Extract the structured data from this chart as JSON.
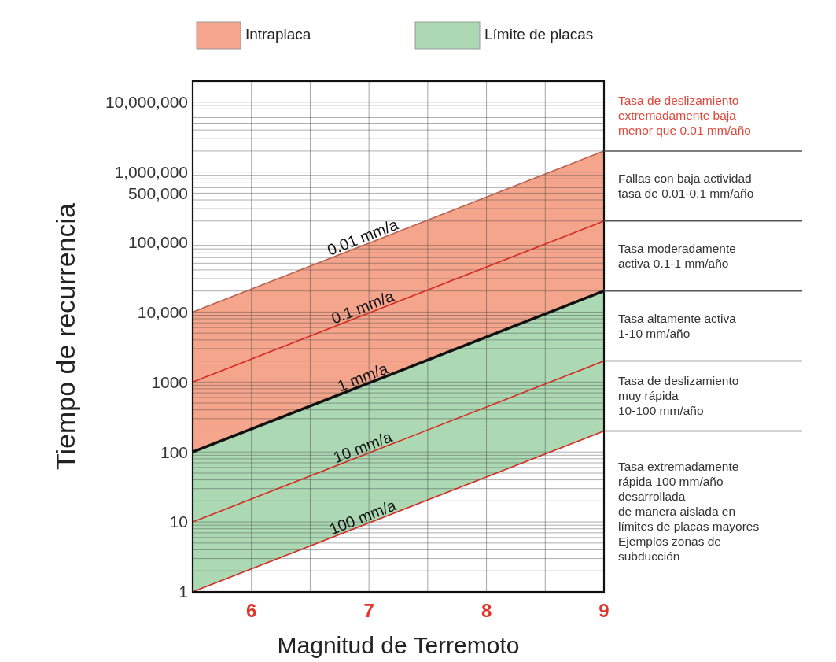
{
  "chart_data": {
    "type": "line",
    "xlabel": "Magnitud de Terremoto",
    "ylabel": "Tiempo de recurrencia",
    "log": true,
    "grid": true,
    "legend": "top",
    "x": [
      5.5,
      9
    ],
    "xlim": [
      5.5,
      9
    ],
    "xticks": [
      6,
      {
        "value": 6.5,
        "label": null
      },
      7,
      {
        "value": 7.5,
        "label": null
      },
      8,
      {
        "value": 8.5,
        "label": null
      },
      9
    ],
    "ylim": [
      1,
      20000000
    ],
    "yticks": [
      1,
      {
        "value": 2,
        "label": null
      },
      {
        "value": 3,
        "label": null
      },
      {
        "value": 4,
        "label": null
      },
      {
        "value": 5,
        "label": null
      },
      {
        "value": 6,
        "label": null
      },
      {
        "value": 7,
        "label": null
      },
      {
        "value": 8,
        "label": null
      },
      {
        "value": 9,
        "label": null
      },
      10,
      {
        "value": 20,
        "label": null
      },
      {
        "value": 30,
        "label": null
      },
      {
        "value": 40,
        "label": null
      },
      {
        "value": 50,
        "label": null
      },
      {
        "value": 60,
        "label": null
      },
      {
        "value": 70,
        "label": null
      },
      {
        "value": 80,
        "label": null
      },
      {
        "value": 90,
        "label": null
      },
      100,
      {
        "value": 200,
        "label": null
      },
      {
        "value": 300,
        "label": null
      },
      {
        "value": 400,
        "label": null
      },
      {
        "value": 500,
        "label": null
      },
      {
        "value": 600,
        "label": null
      },
      {
        "value": 700,
        "label": null
      },
      {
        "value": 800,
        "label": null
      },
      {
        "value": 900,
        "label": null
      },
      1000,
      {
        "value": 2000,
        "label": null
      },
      {
        "value": 3000,
        "label": null
      },
      {
        "value": 4000,
        "label": null
      },
      {
        "value": 5000,
        "label": null
      },
      {
        "value": 6000,
        "label": null
      },
      {
        "value": 7000,
        "label": null
      },
      {
        "value": 8000,
        "label": null
      },
      {
        "value": 9000,
        "label": null
      },
      {
        "value": 10000,
        "label": "10,000"
      },
      {
        "value": 20000,
        "label": null
      },
      {
        "value": 30000,
        "label": null
      },
      {
        "value": 40000,
        "label": null
      },
      {
        "value": 50000,
        "label": null
      },
      {
        "value": 60000,
        "label": null
      },
      {
        "value": 70000,
        "label": null
      },
      {
        "value": 80000,
        "label": null
      },
      {
        "value": 90000,
        "label": null
      },
      {
        "value": 100000,
        "label": "100,000"
      },
      {
        "value": 200000,
        "label": null
      },
      {
        "value": 300000,
        "label": null
      },
      {
        "value": 400000,
        "label": null
      },
      {
        "value": 500000,
        "label": "500,000"
      },
      {
        "value": 600000,
        "label": null
      },
      {
        "value": 700000,
        "label": null
      },
      {
        "value": 800000,
        "label": null
      },
      {
        "value": 900000,
        "label": null
      },
      {
        "value": 1000000,
        "label": "1,000,000"
      },
      {
        "value": 2000000,
        "label": null
      },
      {
        "value": 3000000,
        "label": null
      },
      {
        "value": 4000000,
        "label": null
      },
      {
        "value": 5000000,
        "label": null
      },
      {
        "value": 6000000,
        "label": null
      },
      {
        "value": 7000000,
        "label": null
      },
      {
        "value": 8000000,
        "label": null
      },
      {
        "value": 9000000,
        "label": null
      },
      {
        "value": 10000000,
        "label": "10,000,000"
      },
      {
        "value": 20000000,
        "label": null
      }
    ],
    "series": [
      {
        "type": "line",
        "name": "0.01 mm/a",
        "color": "#b9634f",
        "values": [
          10000,
          2000000
        ]
      },
      {
        "type": "line",
        "name": "0.1 mm/a",
        "color": "#d42a20",
        "values": [
          1000,
          200000
        ]
      },
      {
        "type": "line",
        "name": "1 mm/a",
        "color": "#111111",
        "values": [
          100,
          20000
        ]
      },
      {
        "type": "line",
        "name": "10 mm/a",
        "color": "#d42a20",
        "values": [
          10,
          2000
        ]
      },
      {
        "name": "100 mm/a",
        "color": "#d42a20",
        "values": [
          1,
          200
        ]
      },
      {
        "type": "area",
        "name": "Intraplaca",
        "color": "#f4a58c",
        "values": [
          null,
          null
        ],
        "lower": [
          100,
          20000
        ],
        "upper": [
          10000,
          2000000
        ]
      },
      {
        "type": "area",
        "name": "Límite de placas",
        "color": "#acd9b3",
        "values": [
          null,
          null
        ],
        "lower": [
          1,
          200
        ],
        "upper": [
          100,
          20000
        ]
      }
    ],
    "annotations": [
      "Tasa de deslizamiento\nextremadamente baja\nmenor que 0.01 mm/año",
      "Fallas con baja actividad\ntasa de 0.01-0.1 mm/año",
      "Tasa moderadamente\nactiva 0.1-1 mm/año",
      "Tasa altamente activa\n1-10 mm/año",
      "Tasa de deslizamiento\nmuy rápida\n10-100 mm/año",
      "Tasa extremadamente\nrápida 100 mm/año\ndesarrollada\nde manera aislada en\nlímites de placas mayores\nEjemplos zonas de\nsubducción"
    ]
  }
}
